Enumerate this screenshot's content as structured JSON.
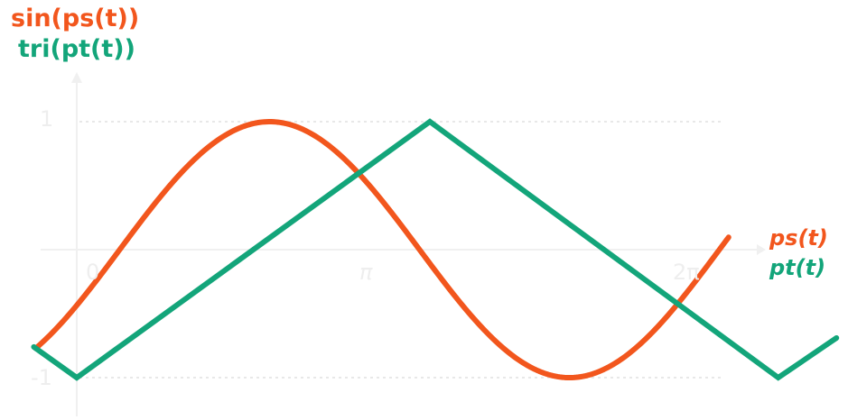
{
  "chart_data": {
    "type": "line",
    "title": "",
    "ylabel_lines": [
      {
        "text": "sin(ps(t))",
        "color": "#f2561d"
      },
      {
        "text": "tri(pt(t))",
        "color": "#13a57a"
      }
    ],
    "xlabel_lines": [
      {
        "text": "ps(t)",
        "color": "#f2561d"
      },
      {
        "text": "pt(t)",
        "color": "#13a57a"
      }
    ],
    "x_ticks": [
      {
        "value": 0,
        "label": "0"
      },
      {
        "value": 3.14159,
        "label": "π"
      },
      {
        "value": 6.28318,
        "label": "2π"
      }
    ],
    "y_ticks": [
      {
        "value": 1,
        "label": "1"
      },
      {
        "value": -1,
        "label": "-1"
      }
    ],
    "xlim": [
      -0.5,
      7.35
    ],
    "ylim": [
      -1.15,
      1.15
    ],
    "grid": true,
    "series": [
      {
        "color": "#f2561d",
        "function": "sine",
        "x_range": [
          -0.43,
          6.83
        ],
        "phase": 0.45
      },
      {
        "color": "#13a57a",
        "function": "triangle",
        "x": [
          -0.45,
          0,
          3.7,
          7.35,
          7.96
        ],
        "y": [
          -0.76,
          -1,
          1,
          -1,
          -0.69
        ]
      }
    ]
  }
}
